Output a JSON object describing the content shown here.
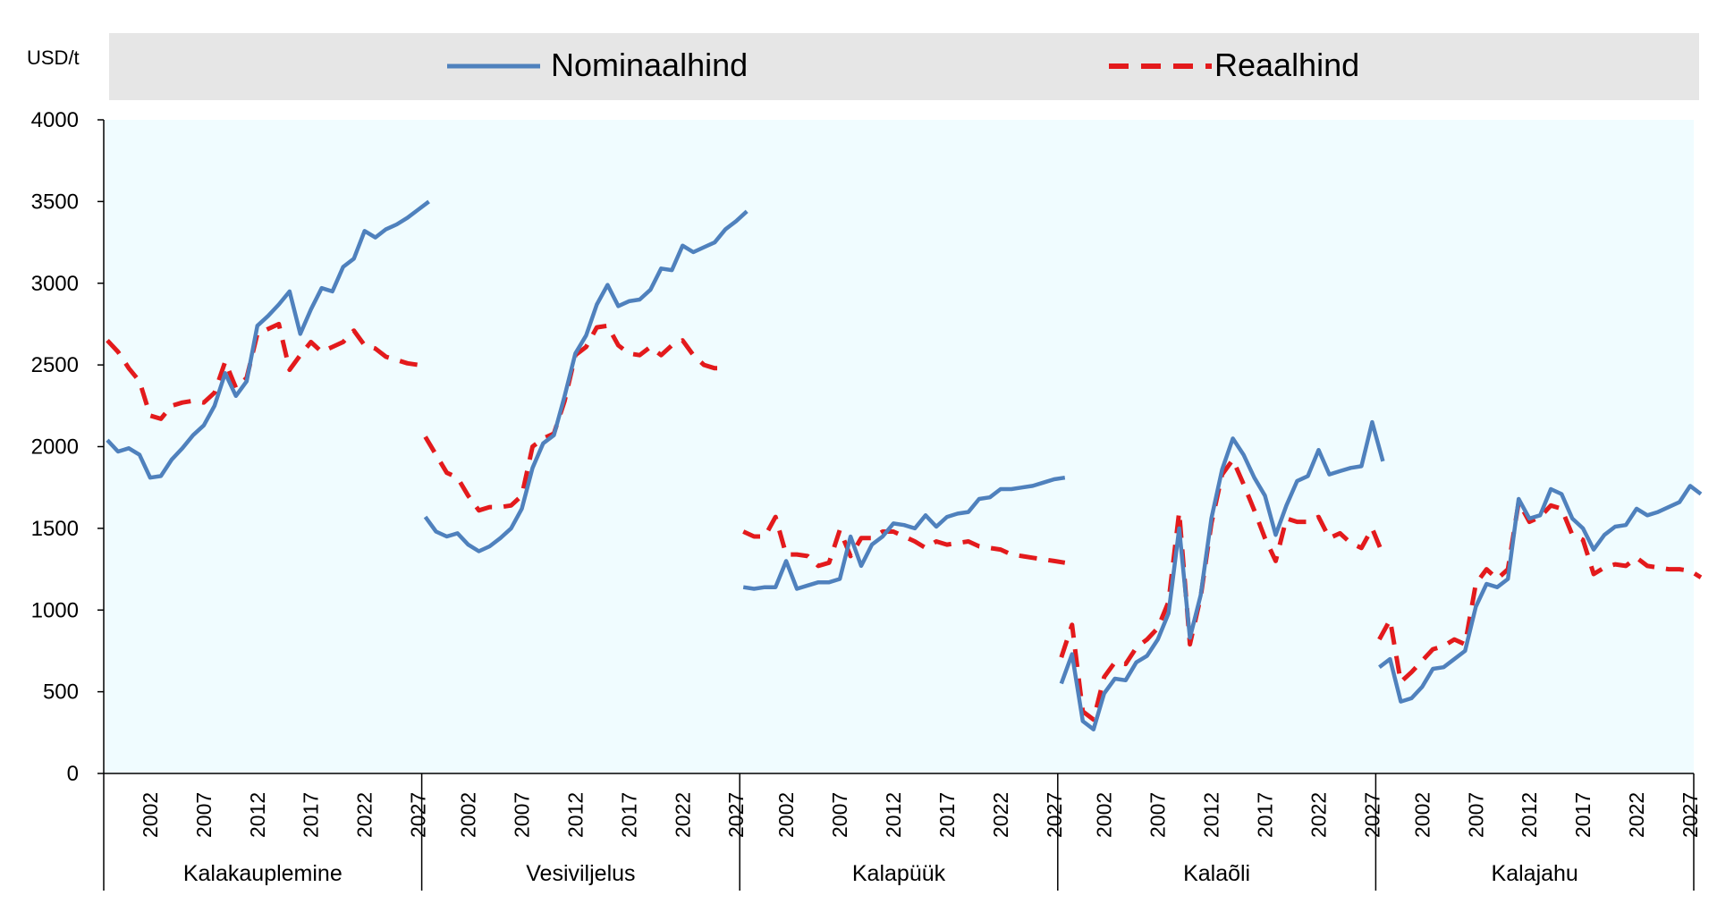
{
  "chart_data": {
    "type": "line",
    "ylabel": "USD/t",
    "ylim": [
      0,
      4000
    ],
    "yticks": [
      0,
      500,
      1000,
      1500,
      2000,
      2500,
      3000,
      3500,
      4000
    ],
    "xtick_labels": [
      "2002",
      "2007",
      "2012",
      "2017",
      "2022",
      "2027"
    ],
    "year_range": [
      1998,
      2027
    ],
    "grid": false,
    "legend_position": "top",
    "plot_background": "#f0fcff",
    "legend_background": "#e6e6e6",
    "series": [
      {
        "name": "Nominaalhind",
        "color": "#4f81bd",
        "style": "solid"
      },
      {
        "name": "Reaalhind",
        "color": "#e31a1c",
        "style": "dashed"
      }
    ],
    "groups": [
      {
        "name": "Kalakauplemine",
        "nominal": [
          2040,
          1970,
          1990,
          1950,
          1810,
          1820,
          1920,
          1990,
          2070,
          2130,
          2250,
          2450,
          2310,
          2400,
          2740,
          2800,
          2870,
          2950,
          2690,
          2840,
          2970,
          2950,
          3100,
          3150,
          3320,
          3280,
          3330,
          3360,
          3400,
          3450,
          3500
        ],
        "real": [
          2650,
          2580,
          2480,
          2400,
          2190,
          2170,
          2250,
          2270,
          2280,
          2270,
          2330,
          2520,
          2360,
          2420,
          2690,
          2720,
          2750,
          2470,
          2560,
          2640,
          2580,
          2610,
          2640,
          2710,
          2620,
          2600,
          2550,
          2530,
          2510,
          2500,
          2500
        ]
      },
      {
        "name": "Vesiviljelus",
        "nominal": [
          1570,
          1480,
          1450,
          1470,
          1400,
          1360,
          1390,
          1440,
          1500,
          1620,
          1870,
          2020,
          2070,
          2310,
          2570,
          2680,
          2870,
          2990,
          2860,
          2890,
          2900,
          2960,
          3090,
          3080,
          3230,
          3190,
          3220,
          3250,
          3330,
          3380,
          3440
        ],
        "real": [
          2060,
          1950,
          1840,
          1810,
          1700,
          1610,
          1630,
          1630,
          1640,
          1700,
          2000,
          2050,
          2080,
          2280,
          2560,
          2610,
          2730,
          2740,
          2620,
          2570,
          2560,
          2610,
          2560,
          2620,
          2650,
          2560,
          2500,
          2480,
          2480
        ],
        "real_start_year": 1998
      },
      {
        "name": "Kalapüük",
        "nominal": [
          1140,
          1130,
          1140,
          1140,
          1300,
          1130,
          1150,
          1170,
          1170,
          1190,
          1450,
          1270,
          1400,
          1450,
          1530,
          1520,
          1500,
          1580,
          1510,
          1570,
          1590,
          1600,
          1680,
          1690,
          1740,
          1740,
          1750,
          1760,
          1780,
          1800,
          1810
        ],
        "real": [
          1480,
          1450,
          1450,
          1570,
          1340,
          1340,
          1330,
          1270,
          1290,
          1490,
          1330,
          1440,
          1440,
          1480,
          1480,
          1450,
          1420,
          1380,
          1420,
          1400,
          1410,
          1420,
          1390,
          1380,
          1370,
          1340,
          1330,
          1320,
          1310,
          1300,
          1290
        ]
      },
      {
        "name": "Kalaõli",
        "nominal": [
          550,
          730,
          320,
          270,
          490,
          580,
          570,
          680,
          720,
          820,
          980,
          1500,
          830,
          1090,
          1560,
          1860,
          2050,
          1950,
          1810,
          1700,
          1460,
          1640,
          1790,
          1820,
          1980,
          1830,
          1850,
          1870,
          1880,
          2150,
          1910
        ],
        "real": [
          710,
          910,
          380,
          330,
          590,
          680,
          670,
          770,
          820,
          890,
          1050,
          1600,
          790,
          1080,
          1530,
          1830,
          1920,
          1770,
          1610,
          1440,
          1300,
          1560,
          1540,
          1540,
          1570,
          1440,
          1470,
          1410,
          1380,
          1500,
          1340
        ]
      },
      {
        "name": "Kalajahu",
        "nominal": [
          650,
          700,
          440,
          460,
          530,
          640,
          650,
          700,
          750,
          1020,
          1160,
          1140,
          1190,
          1680,
          1560,
          1580,
          1740,
          1710,
          1560,
          1500,
          1370,
          1460,
          1510,
          1520,
          1620,
          1580,
          1600,
          1630,
          1660,
          1760,
          1710
        ],
        "real": [
          820,
          940,
          560,
          620,
          690,
          760,
          780,
          820,
          790,
          1160,
          1250,
          1190,
          1250,
          1660,
          1540,
          1570,
          1640,
          1620,
          1460,
          1430,
          1220,
          1260,
          1280,
          1270,
          1320,
          1270,
          1260,
          1250,
          1250,
          1240,
          1200
        ]
      }
    ]
  }
}
